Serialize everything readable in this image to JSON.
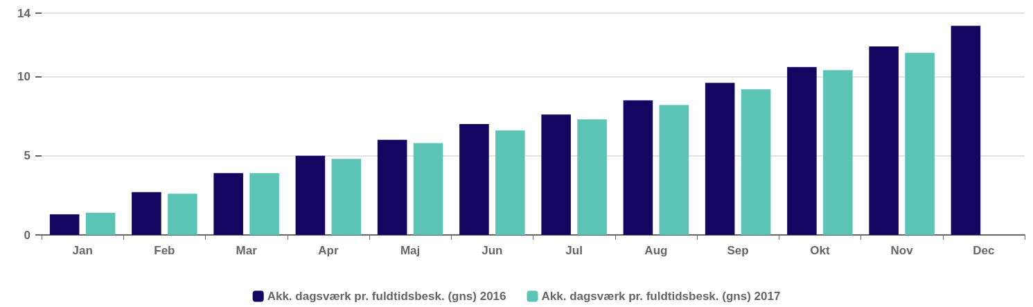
{
  "chart_data": {
    "type": "bar",
    "categories": [
      "Jan",
      "Feb",
      "Mar",
      "Apr",
      "Maj",
      "Jun",
      "Jul",
      "Aug",
      "Sep",
      "Okt",
      "Nov",
      "Dec"
    ],
    "series": [
      {
        "name": "Akk. dagsværk pr. fuldtidsbesk. (gns) 2016",
        "color": "#140660",
        "values": [
          1.3,
          2.7,
          3.9,
          5.0,
          6.0,
          7.0,
          7.6,
          8.5,
          9.6,
          10.6,
          11.9,
          13.2
        ]
      },
      {
        "name": "Akk. dagsværk pr. fuldtidsbesk. (gns) 2017",
        "color": "#5cc4b5",
        "values": [
          1.4,
          2.6,
          3.9,
          4.8,
          5.8,
          6.6,
          7.3,
          8.2,
          9.2,
          10.4,
          11.5,
          null
        ]
      }
    ],
    "ylim": [
      0,
      14
    ],
    "yticks": [
      0,
      5,
      10,
      14
    ],
    "grid": "y",
    "legend": "bottom"
  }
}
